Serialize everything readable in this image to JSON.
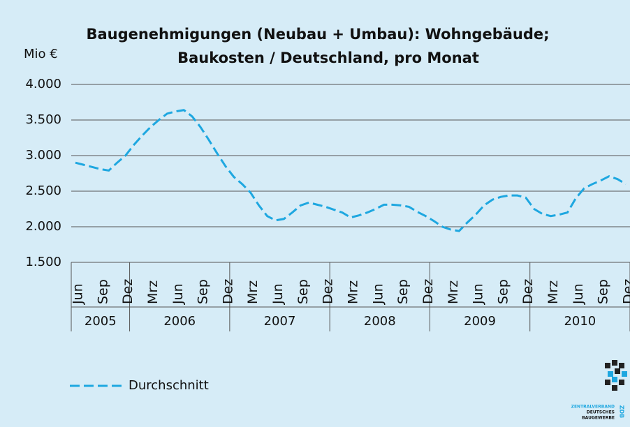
{
  "chart_data": {
    "type": "line",
    "title": "Baugenehmigungen (Neubau + Umbau): Wohngebäude;",
    "subtitle": "Baukosten / Deutschland, pro Monat",
    "y_label": "Mio €",
    "categories": [
      "Jun",
      null,
      null,
      "Sep",
      null,
      null,
      "Dez",
      null,
      null,
      "Mrz",
      null,
      null,
      "Jun",
      null,
      null,
      "Sep",
      null,
      null,
      "Dez",
      null,
      null,
      "Mrz",
      null,
      null,
      "Jun",
      null,
      null,
      "Sep",
      null,
      null,
      "Dez",
      null,
      null,
      "Mrz",
      null,
      null,
      "Jun",
      null,
      null,
      "Sep",
      null,
      null,
      "Dez",
      null,
      null,
      "Mrz",
      null,
      null,
      "Jun",
      null,
      null,
      "Sep",
      null,
      null,
      "Dez",
      null,
      null,
      "Mrz",
      null,
      null,
      "Jun",
      null,
      null,
      "Sep",
      null,
      null,
      "Dez"
    ],
    "years": [
      {
        "label": "2005",
        "months": 7
      },
      {
        "label": "2006",
        "months": 12
      },
      {
        "label": "2007",
        "months": 12
      },
      {
        "label": "2008",
        "months": 12
      },
      {
        "label": "2009",
        "months": 12
      },
      {
        "label": "2010",
        "months": 12
      }
    ],
    "series": [
      {
        "name": "Durchschnitt",
        "color": "#1ea7e0",
        "dashed": true,
        "values": [
          2900,
          2870,
          2840,
          2810,
          2790,
          2900,
          3000,
          3150,
          3280,
          3400,
          3500,
          3590,
          3620,
          3640,
          3550,
          3400,
          3220,
          3030,
          2850,
          2700,
          2600,
          2480,
          2300,
          2150,
          2090,
          2110,
          2200,
          2300,
          2340,
          2310,
          2280,
          2240,
          2200,
          2130,
          2160,
          2200,
          2250,
          2310,
          2310,
          2300,
          2280,
          2210,
          2150,
          2080,
          2000,
          1960,
          1940,
          2060,
          2170,
          2300,
          2380,
          2420,
          2440,
          2440,
          2410,
          2250,
          2180,
          2150,
          2170,
          2200,
          2400,
          2540,
          2600,
          2650,
          2710,
          2670,
          2600
        ]
      }
    ],
    "ylim": [
      1500,
      4000
    ],
    "yticks": [
      {
        "value": 1500,
        "label": "1.500"
      },
      {
        "value": 2000,
        "label": "2.000"
      },
      {
        "value": 2500,
        "label": "2.500"
      },
      {
        "value": 3000,
        "label": "3.000"
      },
      {
        "value": 3500,
        "label": "3.500"
      },
      {
        "value": 4000,
        "label": "4.000"
      }
    ],
    "grid": true,
    "legend": "bottom-left",
    "logo": {
      "line1": "ZENTRALVERBAND",
      "line2": "DEUTSCHES",
      "line3": "BAUGEWERBE",
      "mark": "ZDB"
    }
  }
}
